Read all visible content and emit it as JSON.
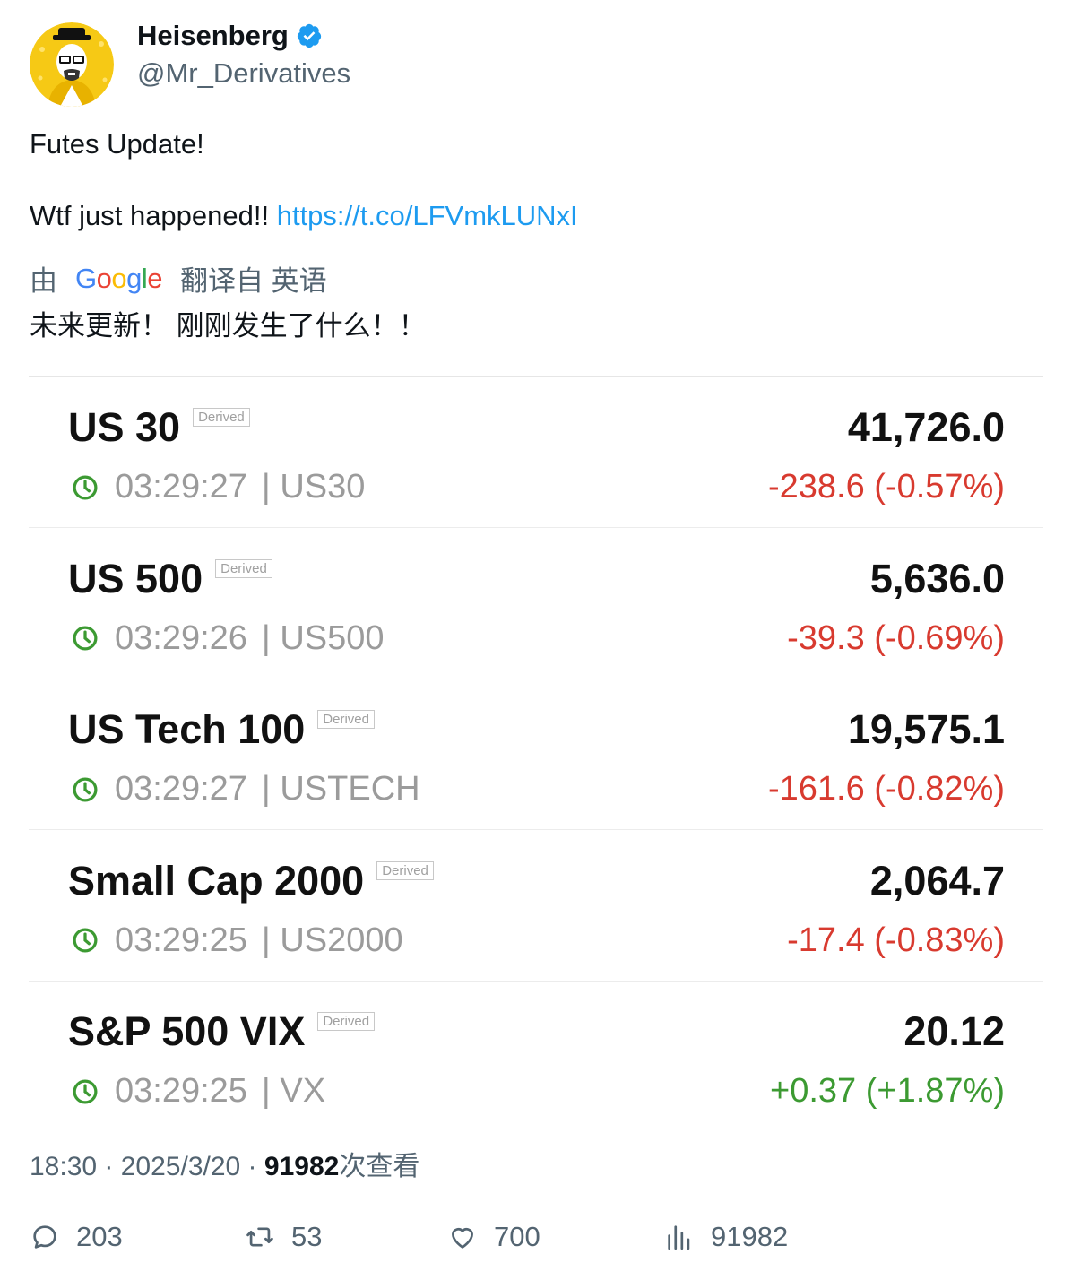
{
  "author": {
    "display_name": "Heisenberg",
    "handle": "@Mr_Derivatives",
    "verified_color": "#1d9bf0"
  },
  "tweet": {
    "line1": "Futes Update!",
    "line2_text": "Wtf just happened!! ",
    "line2_link": "https://t.co/LFVmkLUNxI"
  },
  "translation": {
    "prefix": "由",
    "brand": "Google",
    "suffix": "翻译自 英语",
    "text": "未来更新！ 刚刚发生了什么！！"
  },
  "quotes": [
    {
      "name": "US 30",
      "badge": "Derived",
      "price": "41,726.0",
      "time": "03:29:27",
      "symbol": "| US30",
      "change": "-238.6 (-0.57%)",
      "direction": "down"
    },
    {
      "name": "US 500",
      "badge": "Derived",
      "price": "5,636.0",
      "time": "03:29:26",
      "symbol": "| US500",
      "change": "-39.3 (-0.69%)",
      "direction": "down"
    },
    {
      "name": "US Tech 100",
      "badge": "Derived",
      "price": "19,575.1",
      "time": "03:29:27",
      "symbol": "| USTECH",
      "change": "-161.6 (-0.82%)",
      "direction": "down"
    },
    {
      "name": "Small Cap 2000",
      "badge": "Derived",
      "price": "2,064.7",
      "time": "03:29:25",
      "symbol": "| US2000",
      "change": "-17.4 (-0.83%)",
      "direction": "down"
    },
    {
      "name": "S&P 500 VIX",
      "badge": "Derived",
      "price": "20.12",
      "time": "03:29:25",
      "symbol": "| VX",
      "change": "+0.37 (+1.87%)",
      "direction": "up"
    }
  ],
  "stamp": {
    "time": "18:30",
    "sep": " · ",
    "date": "2025/3/20",
    "views_count": "91982",
    "views_label": "次查看"
  },
  "actions": {
    "replies": "203",
    "retweets": "53",
    "likes": "700",
    "views": "91982"
  }
}
